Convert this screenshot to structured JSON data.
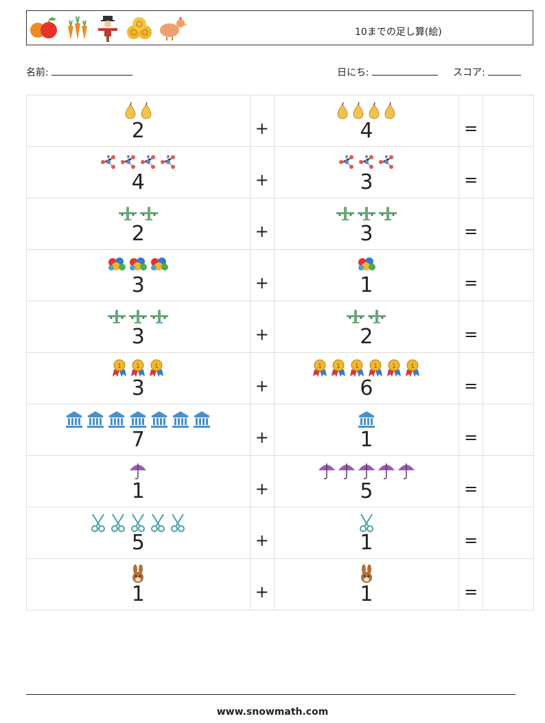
{
  "header": {
    "title": "10までの足し算(絵)",
    "icons": [
      "fruit-icon",
      "carrot-icon",
      "scarecrow-icon",
      "hay-bale-icon",
      "chicken-icon"
    ]
  },
  "meta": {
    "name_label": "名前:",
    "date_label": "日にち:",
    "score_label": "スコア:"
  },
  "problems": [
    {
      "a": "2",
      "b": "4",
      "icon": "pear"
    },
    {
      "a": "4",
      "b": "3",
      "icon": "molecule"
    },
    {
      "a": "2",
      "b": "3",
      "icon": "airplane"
    },
    {
      "a": "3",
      "b": "1",
      "icon": "balloons"
    },
    {
      "a": "3",
      "b": "2",
      "icon": "airplane"
    },
    {
      "a": "3",
      "b": "6",
      "icon": "medal"
    },
    {
      "a": "7",
      "b": "1",
      "icon": "bank"
    },
    {
      "a": "1",
      "b": "5",
      "icon": "umbrella"
    },
    {
      "a": "5",
      "b": "1",
      "icon": "scissors"
    },
    {
      "a": "1",
      "b": "1",
      "icon": "rabbit"
    }
  ],
  "operators": {
    "plus": "+",
    "equals": "="
  },
  "colors": {
    "pear": "#f2c14e",
    "molecule": "#e05a4f",
    "airplane": "#6aa87a",
    "medal": "#f2b731",
    "bank": "#4a90c8",
    "umbrella": "#9b59b6",
    "scissors": "#4aa3a3",
    "rabbit": "#b0703a"
  },
  "footer": {
    "url": "www.snowmath.com"
  }
}
